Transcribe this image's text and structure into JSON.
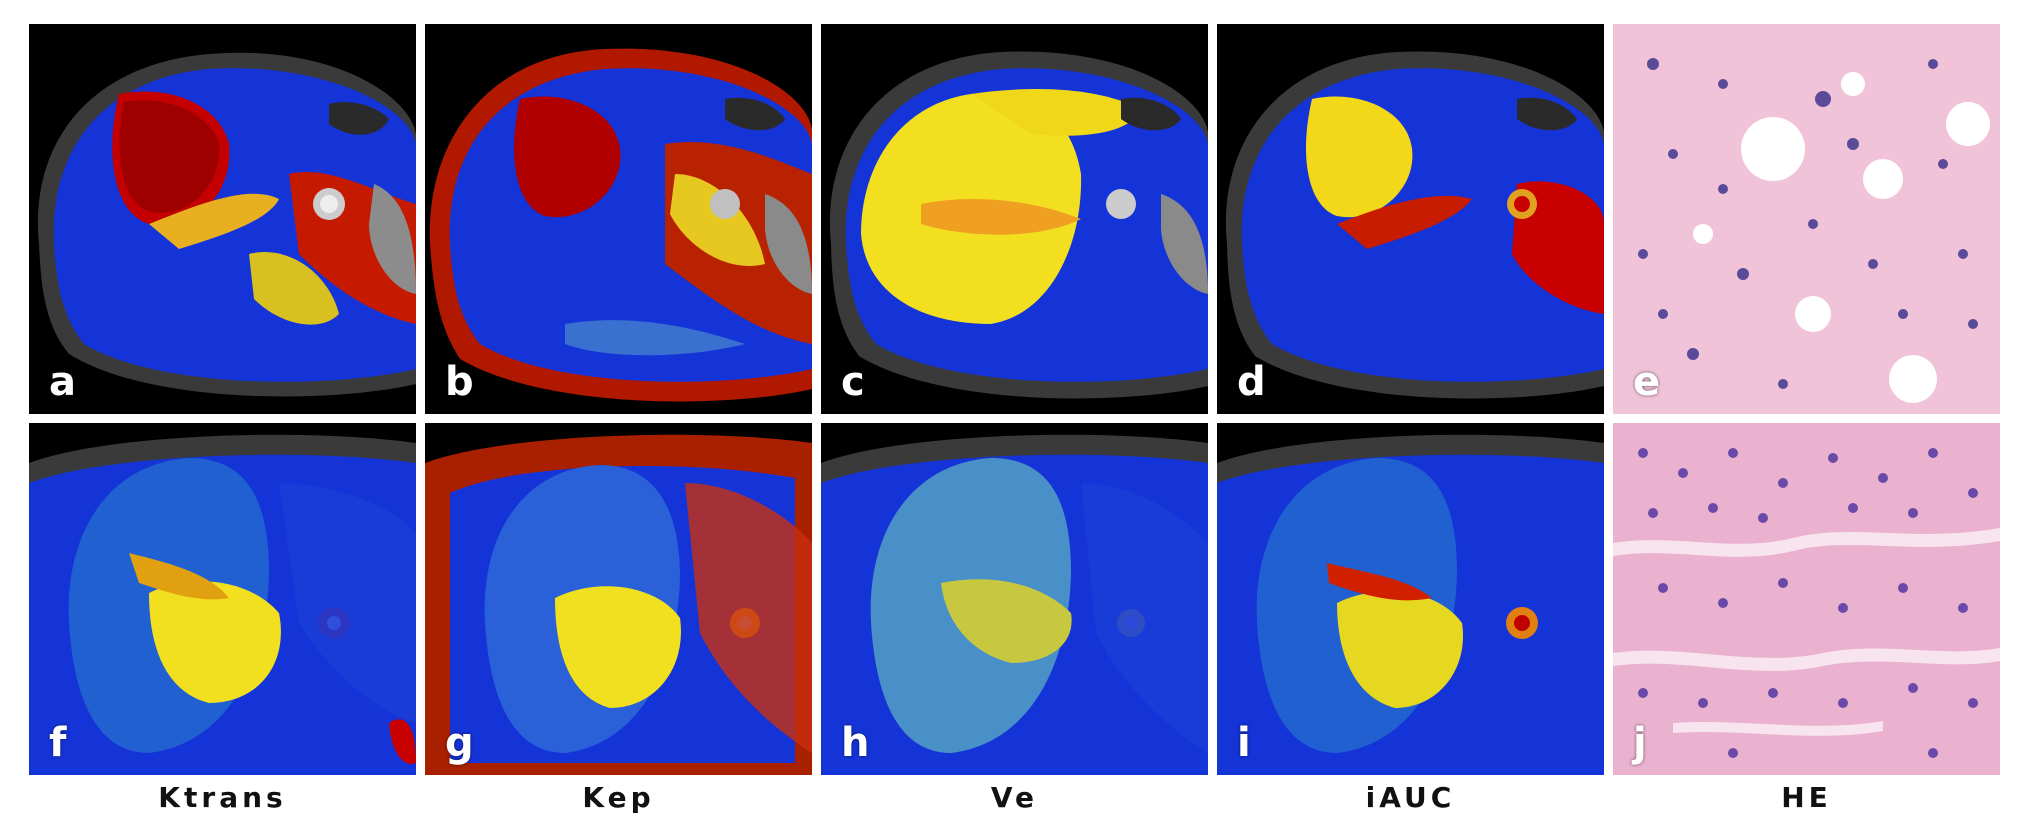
{
  "panels": [
    {
      "letter": "a",
      "map": "Ktrans",
      "row": 0,
      "col": 0,
      "kind": "mri"
    },
    {
      "letter": "b",
      "map": "Kep",
      "row": 0,
      "col": 1,
      "kind": "mri"
    },
    {
      "letter": "c",
      "map": "Ve",
      "row": 0,
      "col": 2,
      "kind": "mri"
    },
    {
      "letter": "d",
      "map": "iAUC",
      "row": 0,
      "col": 3,
      "kind": "mri"
    },
    {
      "letter": "e",
      "map": "HE",
      "row": 0,
      "col": 4,
      "kind": "histology"
    },
    {
      "letter": "f",
      "map": "Ktrans",
      "row": 1,
      "col": 0,
      "kind": "mri"
    },
    {
      "letter": "g",
      "map": "Kep",
      "row": 1,
      "col": 1,
      "kind": "mri"
    },
    {
      "letter": "h",
      "map": "Ve",
      "row": 1,
      "col": 2,
      "kind": "mri"
    },
    {
      "letter": "i",
      "map": "iAUC",
      "row": 1,
      "col": 3,
      "kind": "mri"
    },
    {
      "letter": "j",
      "map": "HE",
      "row": 1,
      "col": 4,
      "kind": "histology"
    }
  ],
  "column_labels": [
    "Ktrans",
    "Kep",
    "Ve",
    "iAUC",
    "HE"
  ],
  "colors": {
    "map_low": "#1030d0",
    "map_mid": "#f0e020",
    "map_high": "#b00000",
    "histology_background": "#f2c7dc",
    "histology_nuclei": "#5a4a9a"
  }
}
